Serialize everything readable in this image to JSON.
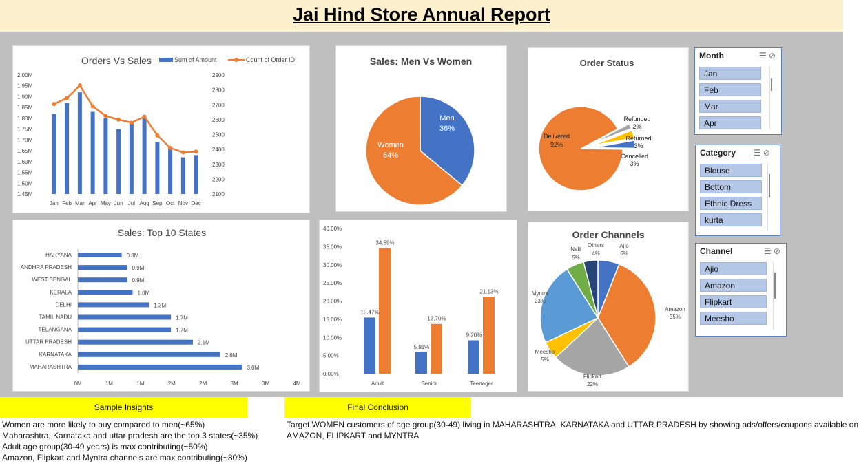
{
  "report": {
    "title": "Jai Hind Store Annual Report"
  },
  "colors": {
    "blue": "#4472c4",
    "orange": "#ed7d31",
    "gray": "#a5a5a5",
    "yellow": "#ffc000",
    "lightblue": "#5b9bd5",
    "green": "#70ad47",
    "navy": "#264478",
    "header_bg": "#fdf1cd",
    "insight_bg": "#ffff00"
  },
  "charts": {
    "orders_vs_sales": {
      "title": "Orders Vs Sales",
      "legend": [
        "Sum of Amount",
        "Count of Order ID"
      ],
      "y_ticks_left": [
        "2.00M",
        "1.95M",
        "1.90M",
        "1.85M",
        "1.80M",
        "1.75M",
        "1.70M",
        "1.65M",
        "1.60M",
        "1.55M",
        "1.50M",
        "1.45M"
      ],
      "y_ticks_right": [
        "2900",
        "2800",
        "2700",
        "2600",
        "2500",
        "2400",
        "2300",
        "2200",
        "2100"
      ]
    },
    "men_women": {
      "title": "Sales: Men Vs Women",
      "labels": [
        {
          "name": "Men",
          "pct": "36%"
        },
        {
          "name": "Women",
          "pct": "64%"
        }
      ]
    },
    "order_status": {
      "title": "Order Status",
      "labels": [
        {
          "name": "Delivered",
          "pct": "92%"
        },
        {
          "name": "Refunded",
          "pct": "2%"
        },
        {
          "name": "Returned",
          "pct": "3%"
        },
        {
          "name": "Cancelled",
          "pct": "3%"
        }
      ]
    },
    "top_states": {
      "title": "Sales: Top 10 States",
      "x_ticks": [
        "0M",
        "1M",
        "1M",
        "2M",
        "2M",
        "3M",
        "3M",
        "4M"
      ],
      "labels": [
        "0.8M",
        "0.9M",
        "0.9M",
        "1.0M",
        "1.3M",
        "1.7M",
        "1.7M",
        "2.1M",
        "2.6M",
        "3.0M"
      ]
    },
    "age_group": {
      "y_ticks": [
        "40.00%",
        "35.00%",
        "30.00%",
        "25.00%",
        "20.00%",
        "15.00%",
        "10.00%",
        "5.00%",
        "0.00%"
      ],
      "value_labels": [
        "15.47%",
        "34.59%",
        "5.91%",
        "13.70%",
        "9.20%",
        "21.13%"
      ]
    },
    "order_channels": {
      "title": "Order Channels",
      "labels": [
        {
          "name": "Ajio",
          "pct": "6%"
        },
        {
          "name": "Amazon",
          "pct": "35%"
        },
        {
          "name": "Flipkart",
          "pct": "22%"
        },
        {
          "name": "Meesho",
          "pct": "5%"
        },
        {
          "name": "Myntra",
          "pct": "23%"
        },
        {
          "name": "Nalli",
          "pct": "5%"
        },
        {
          "name": "Others",
          "pct": "4%"
        }
      ]
    }
  },
  "chart_data": [
    {
      "type": "bar",
      "title": "Orders Vs Sales",
      "categories": [
        "Jan",
        "Feb",
        "Mar",
        "Apr",
        "May",
        "Jun",
        "Jul",
        "Aug",
        "Sep",
        "Oct",
        "Nov",
        "Dec"
      ],
      "series": [
        {
          "name": "Sum of Amount",
          "type": "bar",
          "values": [
            1.82,
            1.87,
            1.92,
            1.83,
            1.8,
            1.75,
            1.78,
            1.8,
            1.69,
            1.67,
            1.62,
            1.63
          ],
          "ylim": [
            1.45,
            2.0
          ]
        },
        {
          "name": "Count of Order ID",
          "type": "line",
          "values": [
            2705,
            2745,
            2830,
            2690,
            2625,
            2600,
            2580,
            2620,
            2495,
            2410,
            2380,
            2385
          ],
          "ylim": [
            2100,
            2900
          ]
        }
      ]
    },
    {
      "type": "pie",
      "title": "Sales: Men Vs Women",
      "categories": [
        "Men",
        "Women"
      ],
      "values": [
        36,
        64
      ]
    },
    {
      "type": "pie",
      "title": "Order Status",
      "categories": [
        "Delivered",
        "Refunded",
        "Returned",
        "Cancelled"
      ],
      "values": [
        92,
        2,
        3,
        3
      ]
    },
    {
      "type": "bar",
      "orientation": "horizontal",
      "title": "Sales: Top 10 States",
      "categories": [
        "HARYANA",
        "ANDHRA PRADESH",
        "WEST BENGAL",
        "KERALA",
        "DELHI",
        "TAMIL NADU",
        "TELANGANA",
        "UTTAR PRADESH",
        "KARNATAKA",
        "MAHARASHTRA"
      ],
      "values": [
        0.8,
        0.9,
        0.9,
        1.0,
        1.3,
        1.7,
        1.7,
        2.1,
        2.6,
        3.0
      ],
      "xlim": [
        0,
        4
      ]
    },
    {
      "type": "bar",
      "categories": [
        "Adult",
        "Senior",
        "Teenager"
      ],
      "series": [
        {
          "values": [
            15.47,
            5.91,
            9.2
          ]
        },
        {
          "values": [
            34.59,
            13.7,
            21.13
          ]
        }
      ],
      "ylim": [
        0,
        40
      ]
    },
    {
      "type": "pie",
      "title": "Order Channels",
      "categories": [
        "Ajio",
        "Amazon",
        "Flipkart",
        "Meesho",
        "Myntra",
        "Nalli",
        "Others"
      ],
      "values": [
        6,
        35,
        22,
        5,
        23,
        5,
        4
      ]
    }
  ],
  "slicers": {
    "month": {
      "title": "Month",
      "items": [
        "Jan",
        "Feb",
        "Mar",
        "Apr"
      ]
    },
    "category": {
      "title": "Category",
      "items": [
        "Blouse",
        "Bottom",
        "Ethnic Dress",
        "kurta"
      ]
    },
    "channel": {
      "title": "Channel",
      "items": [
        "Ajio",
        "Amazon",
        "Flipkart",
        "Meesho"
      ]
    }
  },
  "insights": {
    "heading": "Sample Insights",
    "lines": [
      "Women are more likely to buy compared to men(~65%)",
      "Maharashtra, Karnataka and uttar pradesh are the top 3 states(~35%)",
      "Adult age group(30-49 years) is max contributing(~50%)",
      "Amazon, Flipkart and Myntra channels are max contributing(~80%)"
    ]
  },
  "conclusion": {
    "heading": "Final Conclusion",
    "lines": [
      "Target WOMEN customers of age group(30-49) living in MAHARASHTRA, KARNATAKA and UTTAR PRADESH by showing ads/offers/coupons available on",
      "AMAZON, FLIPKART and MYNTRA"
    ]
  }
}
